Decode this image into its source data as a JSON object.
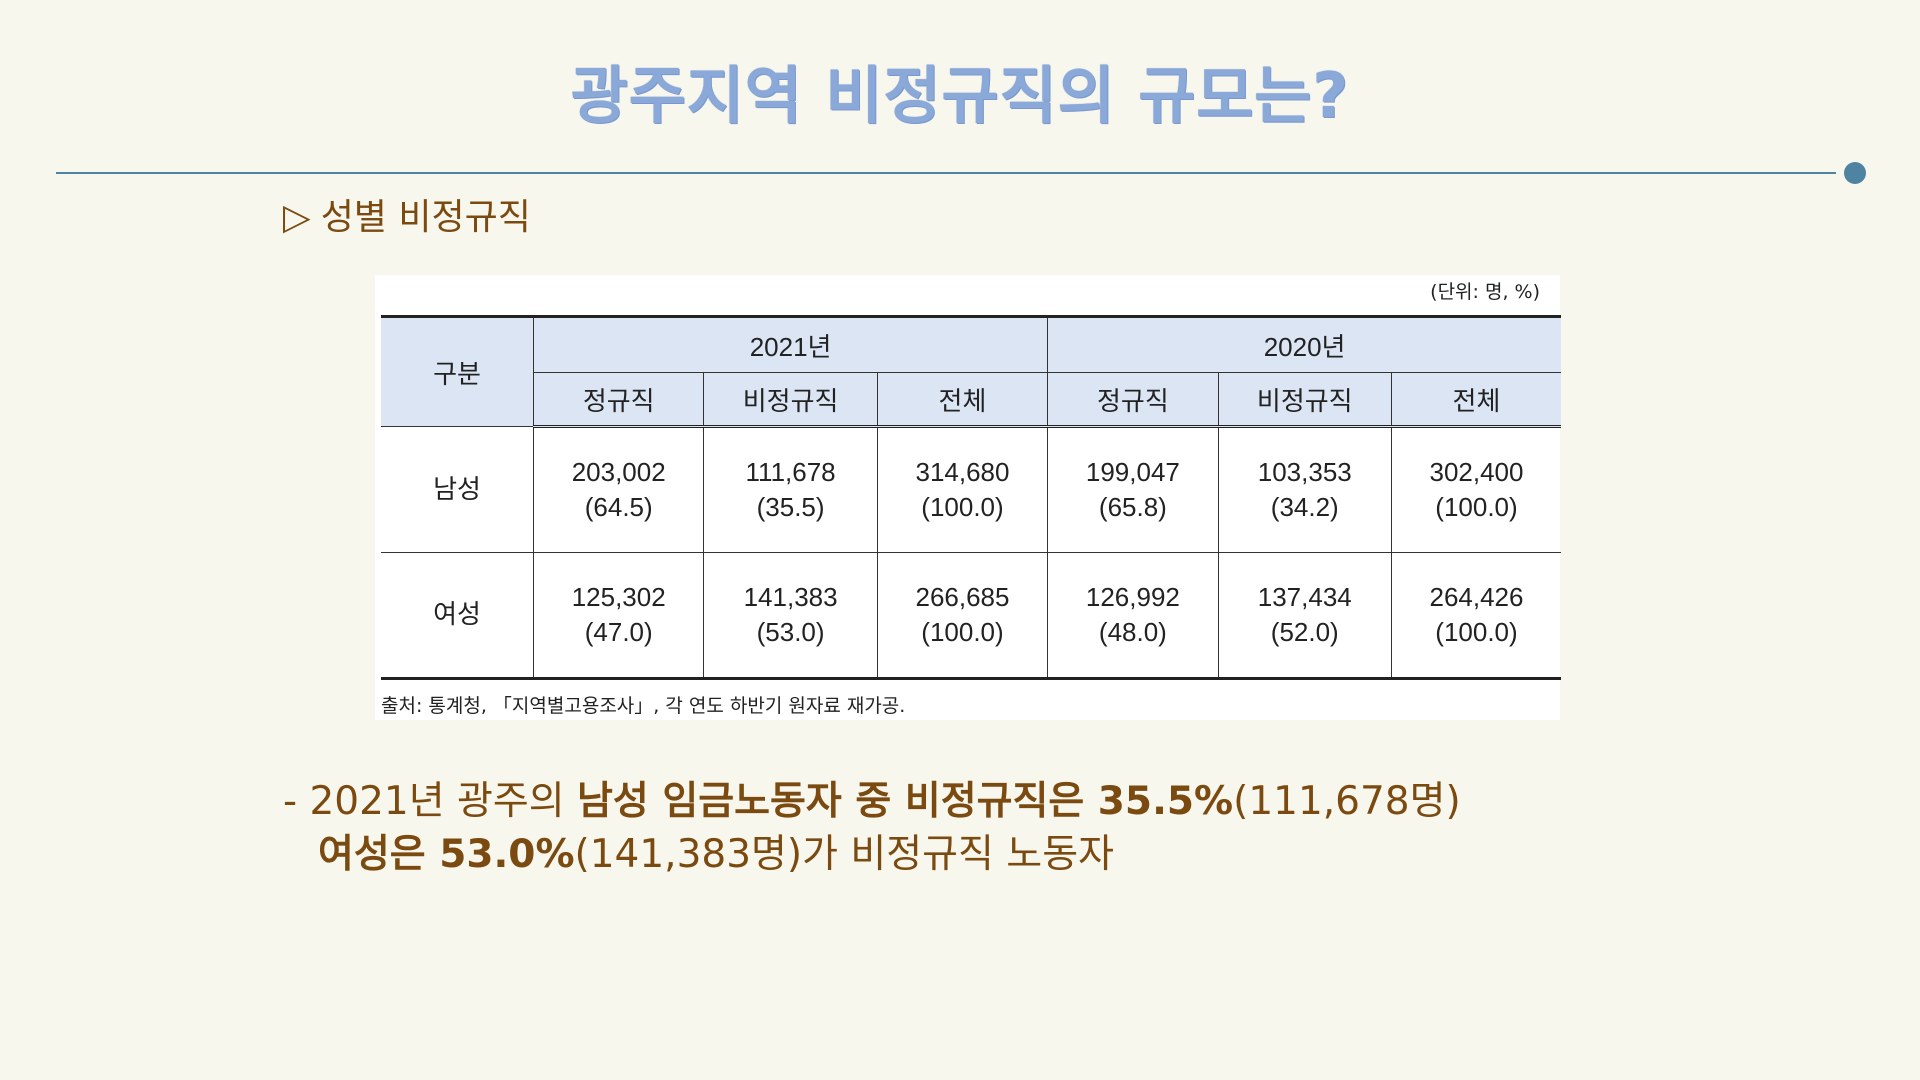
{
  "title": "광주지역 비정규직의 규모는?",
  "section": {
    "marker": "▷",
    "label": "성별 비정규직"
  },
  "table": {
    "unit_note": "(단위: 명, %)",
    "corner_header": "구분",
    "year_headers": [
      "2021년",
      "2020년"
    ],
    "sub_headers": [
      "정규직",
      "비정규직",
      "전체",
      "정규직",
      "비정규직",
      "전체"
    ],
    "rows": [
      {
        "label": "남성",
        "cells": [
          {
            "value": "203,002",
            "pct": "(64.5)"
          },
          {
            "value": "111,678",
            "pct": "(35.5)"
          },
          {
            "value": "314,680",
            "pct": "(100.0)"
          },
          {
            "value": "199,047",
            "pct": "(65.8)"
          },
          {
            "value": "103,353",
            "pct": "(34.2)"
          },
          {
            "value": "302,400",
            "pct": "(100.0)"
          }
        ]
      },
      {
        "label": "여성",
        "cells": [
          {
            "value": "125,302",
            "pct": "(47.0)"
          },
          {
            "value": "141,383",
            "pct": "(53.0)"
          },
          {
            "value": "266,685",
            "pct": "(100.0)"
          },
          {
            "value": "126,992",
            "pct": "(48.0)"
          },
          {
            "value": "137,434",
            "pct": "(52.0)"
          },
          {
            "value": "264,426",
            "pct": "(100.0)"
          }
        ]
      }
    ],
    "source": "출처: 통계청, 「지역별고용조사」, 각 연도 하반기 원자료 재가공."
  },
  "summary": {
    "l1_a": "- 2021년 광주의 ",
    "l1_b": "남성 임금노동자 중 비정규직은 35.5%",
    "l1_c": "(111,678명)",
    "l2_a": "여성은 53.0%",
    "l2_b": "(141,383명)가 비정규직 노동자"
  },
  "colors": {
    "background": "#f8f7ee",
    "title": "#8aa8d8",
    "divider": "#4f83a2",
    "body_text": "#7a4a10",
    "table_header_bg": "#dbe5f4"
  }
}
